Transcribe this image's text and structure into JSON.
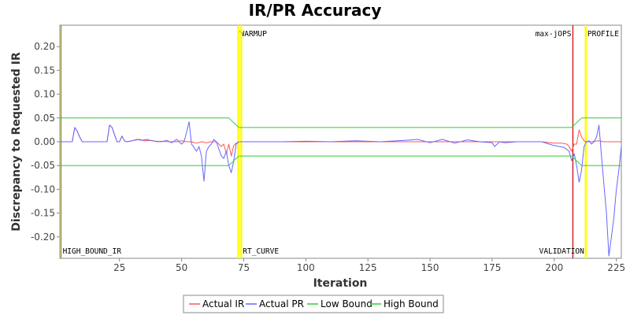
{
  "chart_data": {
    "type": "line",
    "title": "IR/PR Accuracy",
    "xlabel": "Iteration",
    "ylabel": "Discrepancy to Requested IR",
    "xlim": [
      1,
      227
    ],
    "ylim": [
      -0.245,
      0.245
    ],
    "x_ticks": [
      25,
      50,
      75,
      100,
      125,
      150,
      175,
      200,
      225
    ],
    "y_ticks": [
      0.2,
      0.15,
      0.1,
      0.05,
      0.0,
      -0.05,
      -0.1,
      -0.15,
      -0.2
    ],
    "y_tick_labels": [
      "0.20",
      "0.15",
      "0.10",
      "0.05",
      "0.00",
      "-0.05",
      "-0.10",
      "-0.15",
      "-0.20"
    ],
    "grid": false,
    "legend_position": "bottom",
    "series": [
      {
        "name": "Actual IR",
        "color": "#ff5555",
        "points": [
          [
            1,
            0
          ],
          [
            6,
            0
          ],
          [
            7,
            0.03
          ],
          [
            8,
            0.022
          ],
          [
            9,
            0.01
          ],
          [
            10,
            0
          ],
          [
            15,
            0
          ],
          [
            20,
            0
          ],
          [
            21,
            0.035
          ],
          [
            22,
            0.03
          ],
          [
            23,
            0.015
          ],
          [
            24,
            0
          ],
          [
            25,
            0
          ],
          [
            26,
            0.012
          ],
          [
            27,
            0.002
          ],
          [
            28,
            0
          ],
          [
            30,
            0.002
          ],
          [
            33,
            0.005
          ],
          [
            35,
            0.002
          ],
          [
            38,
            0.003
          ],
          [
            40,
            0
          ],
          [
            42,
            0.001
          ],
          [
            45,
            0
          ],
          [
            48,
            0
          ],
          [
            50,
            0.002
          ],
          [
            52,
            0
          ],
          [
            54,
            0
          ],
          [
            56,
            -0.003
          ],
          [
            58,
            0
          ],
          [
            60,
            -0.002
          ],
          [
            62,
            0
          ],
          [
            64,
            0
          ],
          [
            66,
            -0.01
          ],
          [
            67,
            -0.005
          ],
          [
            68,
            -0.025
          ],
          [
            69,
            -0.005
          ],
          [
            70,
            -0.03
          ],
          [
            71,
            -0.008
          ],
          [
            72,
            -0.003
          ],
          [
            73,
            0
          ],
          [
            80,
            0
          ],
          [
            100,
            0
          ],
          [
            125,
            0
          ],
          [
            150,
            0
          ],
          [
            175,
            0
          ],
          [
            195,
            0
          ],
          [
            200,
            -0.003
          ],
          [
            203,
            -0.003
          ],
          [
            205,
            -0.005
          ],
          [
            206,
            -0.01
          ],
          [
            207,
            -0.02
          ],
          [
            208,
            -0.005
          ],
          [
            209,
            -0.005
          ],
          [
            210,
            0.025
          ],
          [
            211,
            0.01
          ],
          [
            212,
            0.002
          ],
          [
            213,
            0
          ],
          [
            215,
            0
          ],
          [
            218,
            0.002
          ],
          [
            220,
            0
          ],
          [
            227,
            0
          ]
        ]
      },
      {
        "name": "Actual PR",
        "color": "#6666ff",
        "points": [
          [
            1,
            0
          ],
          [
            6,
            0
          ],
          [
            7,
            0.03
          ],
          [
            8,
            0.022
          ],
          [
            9,
            0.01
          ],
          [
            10,
            0
          ],
          [
            15,
            0
          ],
          [
            20,
            0
          ],
          [
            21,
            0.035
          ],
          [
            22,
            0.03
          ],
          [
            23,
            0.015
          ],
          [
            24,
            0
          ],
          [
            25,
            0
          ],
          [
            26,
            0.012
          ],
          [
            27,
            0.002
          ],
          [
            28,
            0
          ],
          [
            30,
            0.002
          ],
          [
            32,
            0.005
          ],
          [
            34,
            0.003
          ],
          [
            36,
            0.005
          ],
          [
            38,
            0.002
          ],
          [
            40,
            0.001
          ],
          [
            42,
            0
          ],
          [
            44,
            0.003
          ],
          [
            46,
            -0.002
          ],
          [
            48,
            0.005
          ],
          [
            50,
            -0.005
          ],
          [
            51,
            0
          ],
          [
            52,
            0.02
          ],
          [
            53,
            0.042
          ],
          [
            54,
            -0.005
          ],
          [
            55,
            -0.012
          ],
          [
            56,
            -0.02
          ],
          [
            57,
            -0.01
          ],
          [
            58,
            -0.03
          ],
          [
            59,
            -0.083
          ],
          [
            60,
            -0.02
          ],
          [
            61,
            -0.01
          ],
          [
            62,
            -0.005
          ],
          [
            63,
            0.005
          ],
          [
            64,
            0
          ],
          [
            65,
            -0.015
          ],
          [
            66,
            -0.03
          ],
          [
            67,
            -0.035
          ],
          [
            68,
            -0.02
          ],
          [
            69,
            -0.05
          ],
          [
            70,
            -0.065
          ],
          [
            71,
            -0.04
          ],
          [
            72,
            -0.005
          ],
          [
            73,
            0
          ],
          [
            80,
            0
          ],
          [
            90,
            0
          ],
          [
            100,
            0.001
          ],
          [
            110,
            0
          ],
          [
            120,
            0.002
          ],
          [
            130,
            0
          ],
          [
            140,
            0.003
          ],
          [
            145,
            0.005
          ],
          [
            150,
            -0.002
          ],
          [
            155,
            0.005
          ],
          [
            160,
            -0.003
          ],
          [
            165,
            0.004
          ],
          [
            170,
            0
          ],
          [
            175,
            -0.002
          ],
          [
            176,
            -0.01
          ],
          [
            178,
            0
          ],
          [
            180,
            -0.002
          ],
          [
            185,
            0
          ],
          [
            190,
            0
          ],
          [
            195,
            0
          ],
          [
            198,
            -0.005
          ],
          [
            200,
            -0.008
          ],
          [
            202,
            -0.01
          ],
          [
            204,
            -0.012
          ],
          [
            206,
            -0.02
          ],
          [
            207,
            -0.04
          ],
          [
            208,
            -0.025
          ],
          [
            209,
            -0.05
          ],
          [
            210,
            -0.085
          ],
          [
            211,
            -0.06
          ],
          [
            212,
            -0.01
          ],
          [
            213,
            0
          ],
          [
            214,
            0.002
          ],
          [
            215,
            -0.005
          ],
          [
            216,
            0
          ],
          [
            217,
            0.01
          ],
          [
            218,
            0.035
          ],
          [
            219,
            -0.03
          ],
          [
            220,
            -0.09
          ],
          [
            221,
            -0.15
          ],
          [
            222,
            -0.24
          ],
          [
            223,
            -0.2
          ],
          [
            224,
            -0.16
          ],
          [
            225,
            -0.1
          ],
          [
            226,
            -0.06
          ],
          [
            227,
            -0.01
          ]
        ]
      },
      {
        "name": "Low Bound",
        "color": "#33cc33",
        "points": [
          [
            1,
            -0.05
          ],
          [
            69,
            -0.05
          ],
          [
            73,
            -0.03
          ],
          [
            207,
            -0.03
          ],
          [
            211,
            -0.05
          ],
          [
            227,
            -0.05
          ]
        ]
      },
      {
        "name": "High Bound",
        "color": "#33cc33",
        "points": [
          [
            1,
            0.05
          ],
          [
            69,
            0.05
          ],
          [
            73,
            0.03
          ],
          [
            207,
            0.03
          ],
          [
            211,
            0.05
          ],
          [
            227,
            0.05
          ]
        ]
      }
    ],
    "markers": [
      {
        "x": 1.5,
        "color": "#999900",
        "label": "HIGH_BOUND_IR",
        "label_pos": "bottom"
      },
      {
        "x": 72.8,
        "color": "#ffff00",
        "label": "WARMUP",
        "label_pos": "top"
      },
      {
        "x": 74.0,
        "color": "#ffff00",
        "label": "RT_CURVE",
        "label_pos": "bottom"
      },
      {
        "x": 207.5,
        "color": "#cc0000",
        "label": "max-jOPS",
        "label_pos": "top-left"
      },
      {
        "x": 212.7,
        "color": "#ffff00",
        "label": "VALIDATION",
        "label_pos": "bottom-left"
      },
      {
        "x": 212.7,
        "color": "#ffff00",
        "label": "PROFILE",
        "label_pos": "top"
      }
    ]
  }
}
